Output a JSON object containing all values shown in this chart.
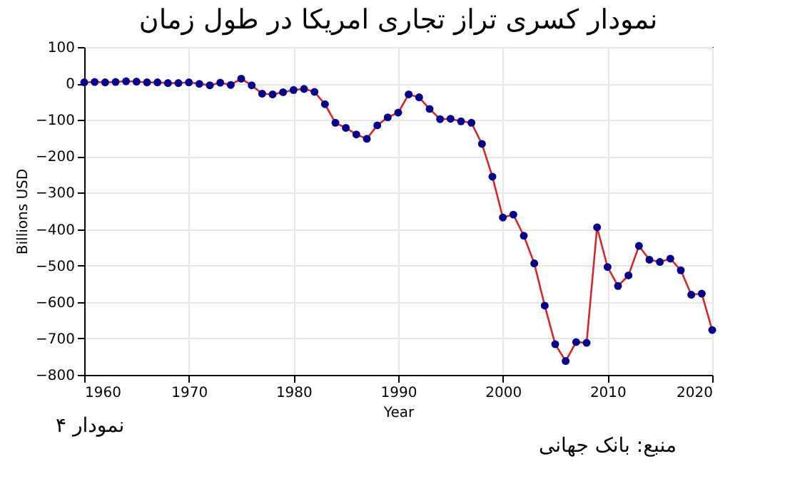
{
  "chart_data": {
    "type": "line",
    "title": "نمودار کسری تراز تجاری امریکا در طول زمان",
    "xlabel": "Year",
    "ylabel": "Billions USD",
    "x": [
      1960,
      1961,
      1962,
      1963,
      1964,
      1965,
      1966,
      1967,
      1968,
      1969,
      1970,
      1971,
      1972,
      1973,
      1974,
      1975,
      1976,
      1977,
      1978,
      1979,
      1980,
      1981,
      1982,
      1983,
      1984,
      1985,
      1986,
      1987,
      1988,
      1989,
      1990,
      1991,
      1992,
      1993,
      1994,
      1995,
      1996,
      1997,
      1998,
      1999,
      2000,
      2001,
      2002,
      2003,
      2004,
      2005,
      2006,
      2007,
      2008,
      2009,
      2010,
      2011,
      2012,
      2013,
      2014,
      2015,
      2016,
      2017,
      2018,
      2019,
      2020
    ],
    "series": [
      {
        "color": "#d62728",
        "values": [
          3,
          4,
          3,
          4,
          6,
          5,
          3,
          3,
          1,
          1,
          3,
          -1,
          -5,
          2,
          -4,
          13,
          -5,
          -28,
          -30,
          -24,
          -18,
          -15,
          -23,
          -57,
          -108,
          -122,
          -140,
          -152,
          -115,
          -93,
          -80,
          -30,
          -38,
          -70,
          -98,
          -97,
          -104,
          -108,
          -166,
          -256,
          -368,
          -360,
          -418,
          -494,
          -610,
          -716,
          -762,
          -710,
          -712,
          -395,
          -504,
          -556,
          -527,
          -446,
          -484,
          -490,
          -481,
          -513,
          -580,
          -577,
          -677
        ]
      }
    ],
    "marker": "circle",
    "line_style": "solid",
    "grid": true,
    "xlim": [
      1960,
      2020
    ],
    "xticks": [
      1960,
      1970,
      1980,
      1990,
      2000,
      2010,
      2020
    ],
    "ylim": [
      -800,
      100
    ],
    "yticks": [
      -800,
      -700,
      -600,
      -500,
      -400,
      -300,
      -200,
      -100,
      0,
      100
    ],
    "annotations": [
      "نمودار ۴",
      "منبع: بانک جهانی"
    ]
  }
}
